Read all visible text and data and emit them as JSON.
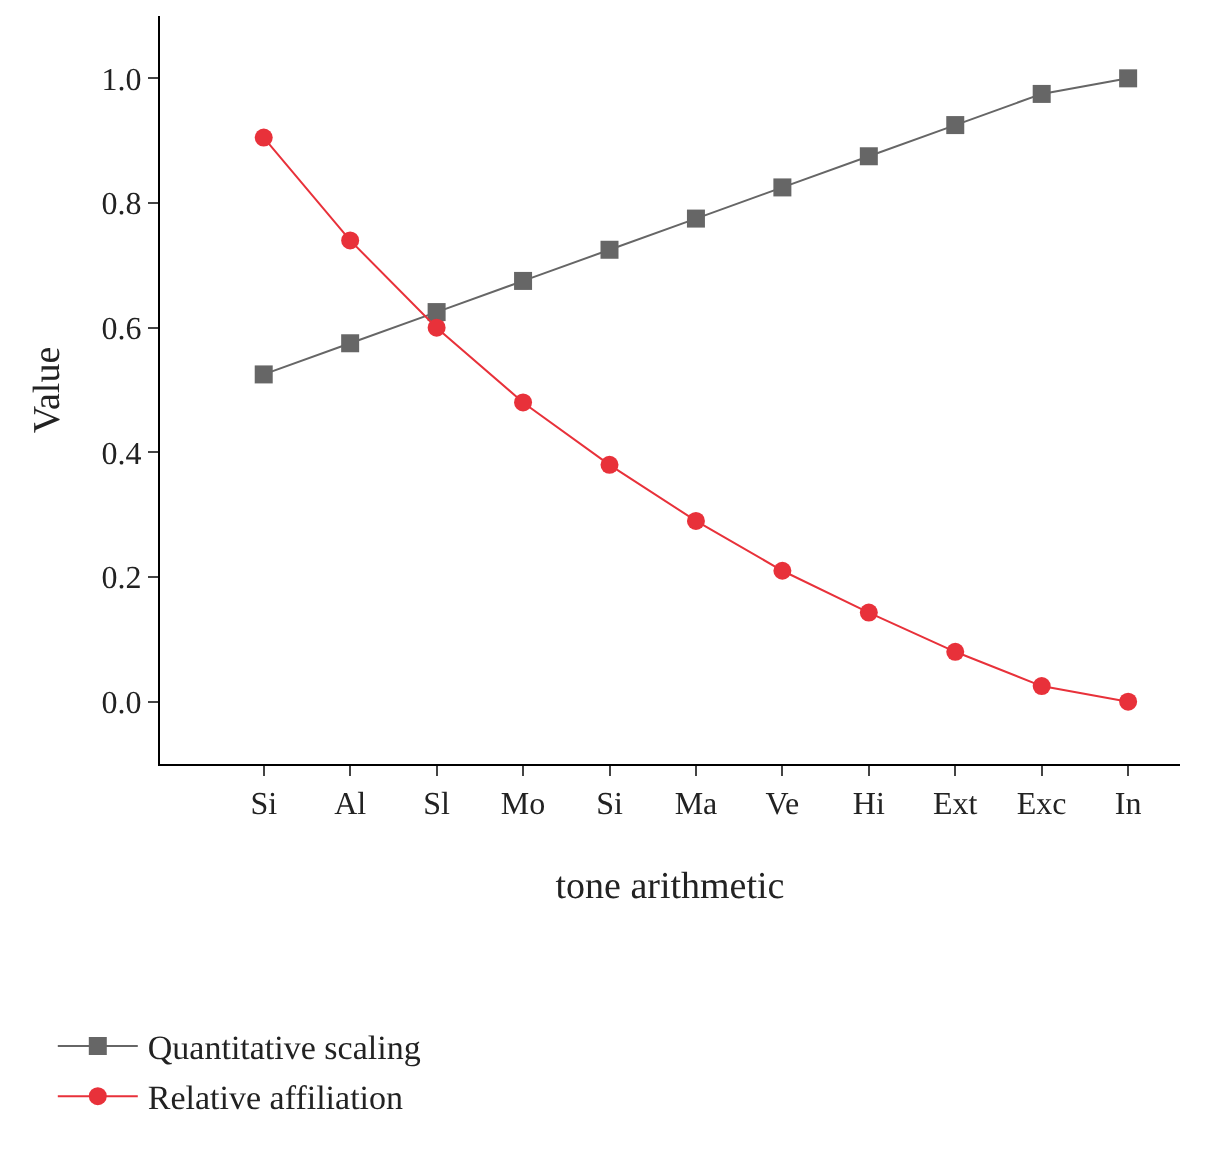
{
  "chart_data": {
    "type": "line",
    "xlabel": "tone arithmetic",
    "ylabel": "Value",
    "categories": [
      "Si",
      "Al",
      "Sl",
      "Mo",
      "Si",
      "Ma",
      "Ve",
      "Hi",
      "Ext",
      "Exc",
      "In"
    ],
    "series": [
      {
        "name": "Quantitative scaling",
        "color": "#666666",
        "marker": "square",
        "values": [
          0.525,
          0.575,
          0.625,
          0.675,
          0.725,
          0.775,
          0.825,
          0.875,
          0.925,
          0.975,
          1.0
        ]
      },
      {
        "name": "Relative affiliation",
        "color": "#e8313a",
        "marker": "circle",
        "values": [
          0.905,
          0.74,
          0.6,
          0.48,
          0.38,
          0.29,
          0.21,
          0.143,
          0.08,
          0.025,
          0.0
        ]
      }
    ],
    "ylim": [
      -0.1,
      1.1
    ],
    "yticks": [
      {
        "value": 0,
        "label": "0.0"
      },
      0.2,
      0.4,
      0.6,
      0.8,
      {
        "value": 1,
        "label": "1.0"
      }
    ],
    "legend": "bottom left",
    "line_style": "solid"
  }
}
